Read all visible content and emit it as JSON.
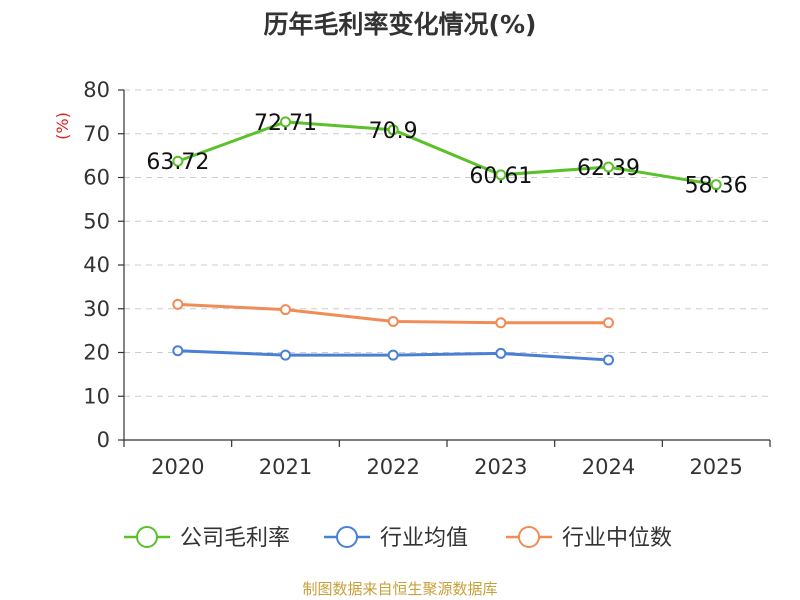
{
  "chart_data": {
    "type": "line",
    "title": "历年毛利率变化情况(%)",
    "ylabel": "(%)",
    "xlabel": "",
    "ylim": [
      0,
      80
    ],
    "yticks": [
      0,
      10,
      20,
      30,
      40,
      50,
      60,
      70,
      80
    ],
    "categories": [
      "2020",
      "2021",
      "2022",
      "2023",
      "2024",
      "2025"
    ],
    "grid": true,
    "legend_position": "bottom",
    "series": [
      {
        "name": "公司毛利率",
        "color": "#5bc12a",
        "values": [
          63.72,
          72.71,
          70.9,
          60.61,
          62.39,
          58.36
        ],
        "labels": [
          "63.72",
          "72.71",
          "70.9",
          "60.61",
          "62.39",
          "58.36"
        ]
      },
      {
        "name": "行业均值",
        "color": "#4a7fd6",
        "values": [
          20.4,
          19.4,
          19.4,
          19.8,
          18.3,
          null
        ]
      },
      {
        "name": "行业中位数",
        "color": "#f08c55",
        "values": [
          31.0,
          29.8,
          27.1,
          26.8,
          26.8,
          null
        ]
      }
    ]
  },
  "source_text": "制图数据来自恒生聚源数据库"
}
